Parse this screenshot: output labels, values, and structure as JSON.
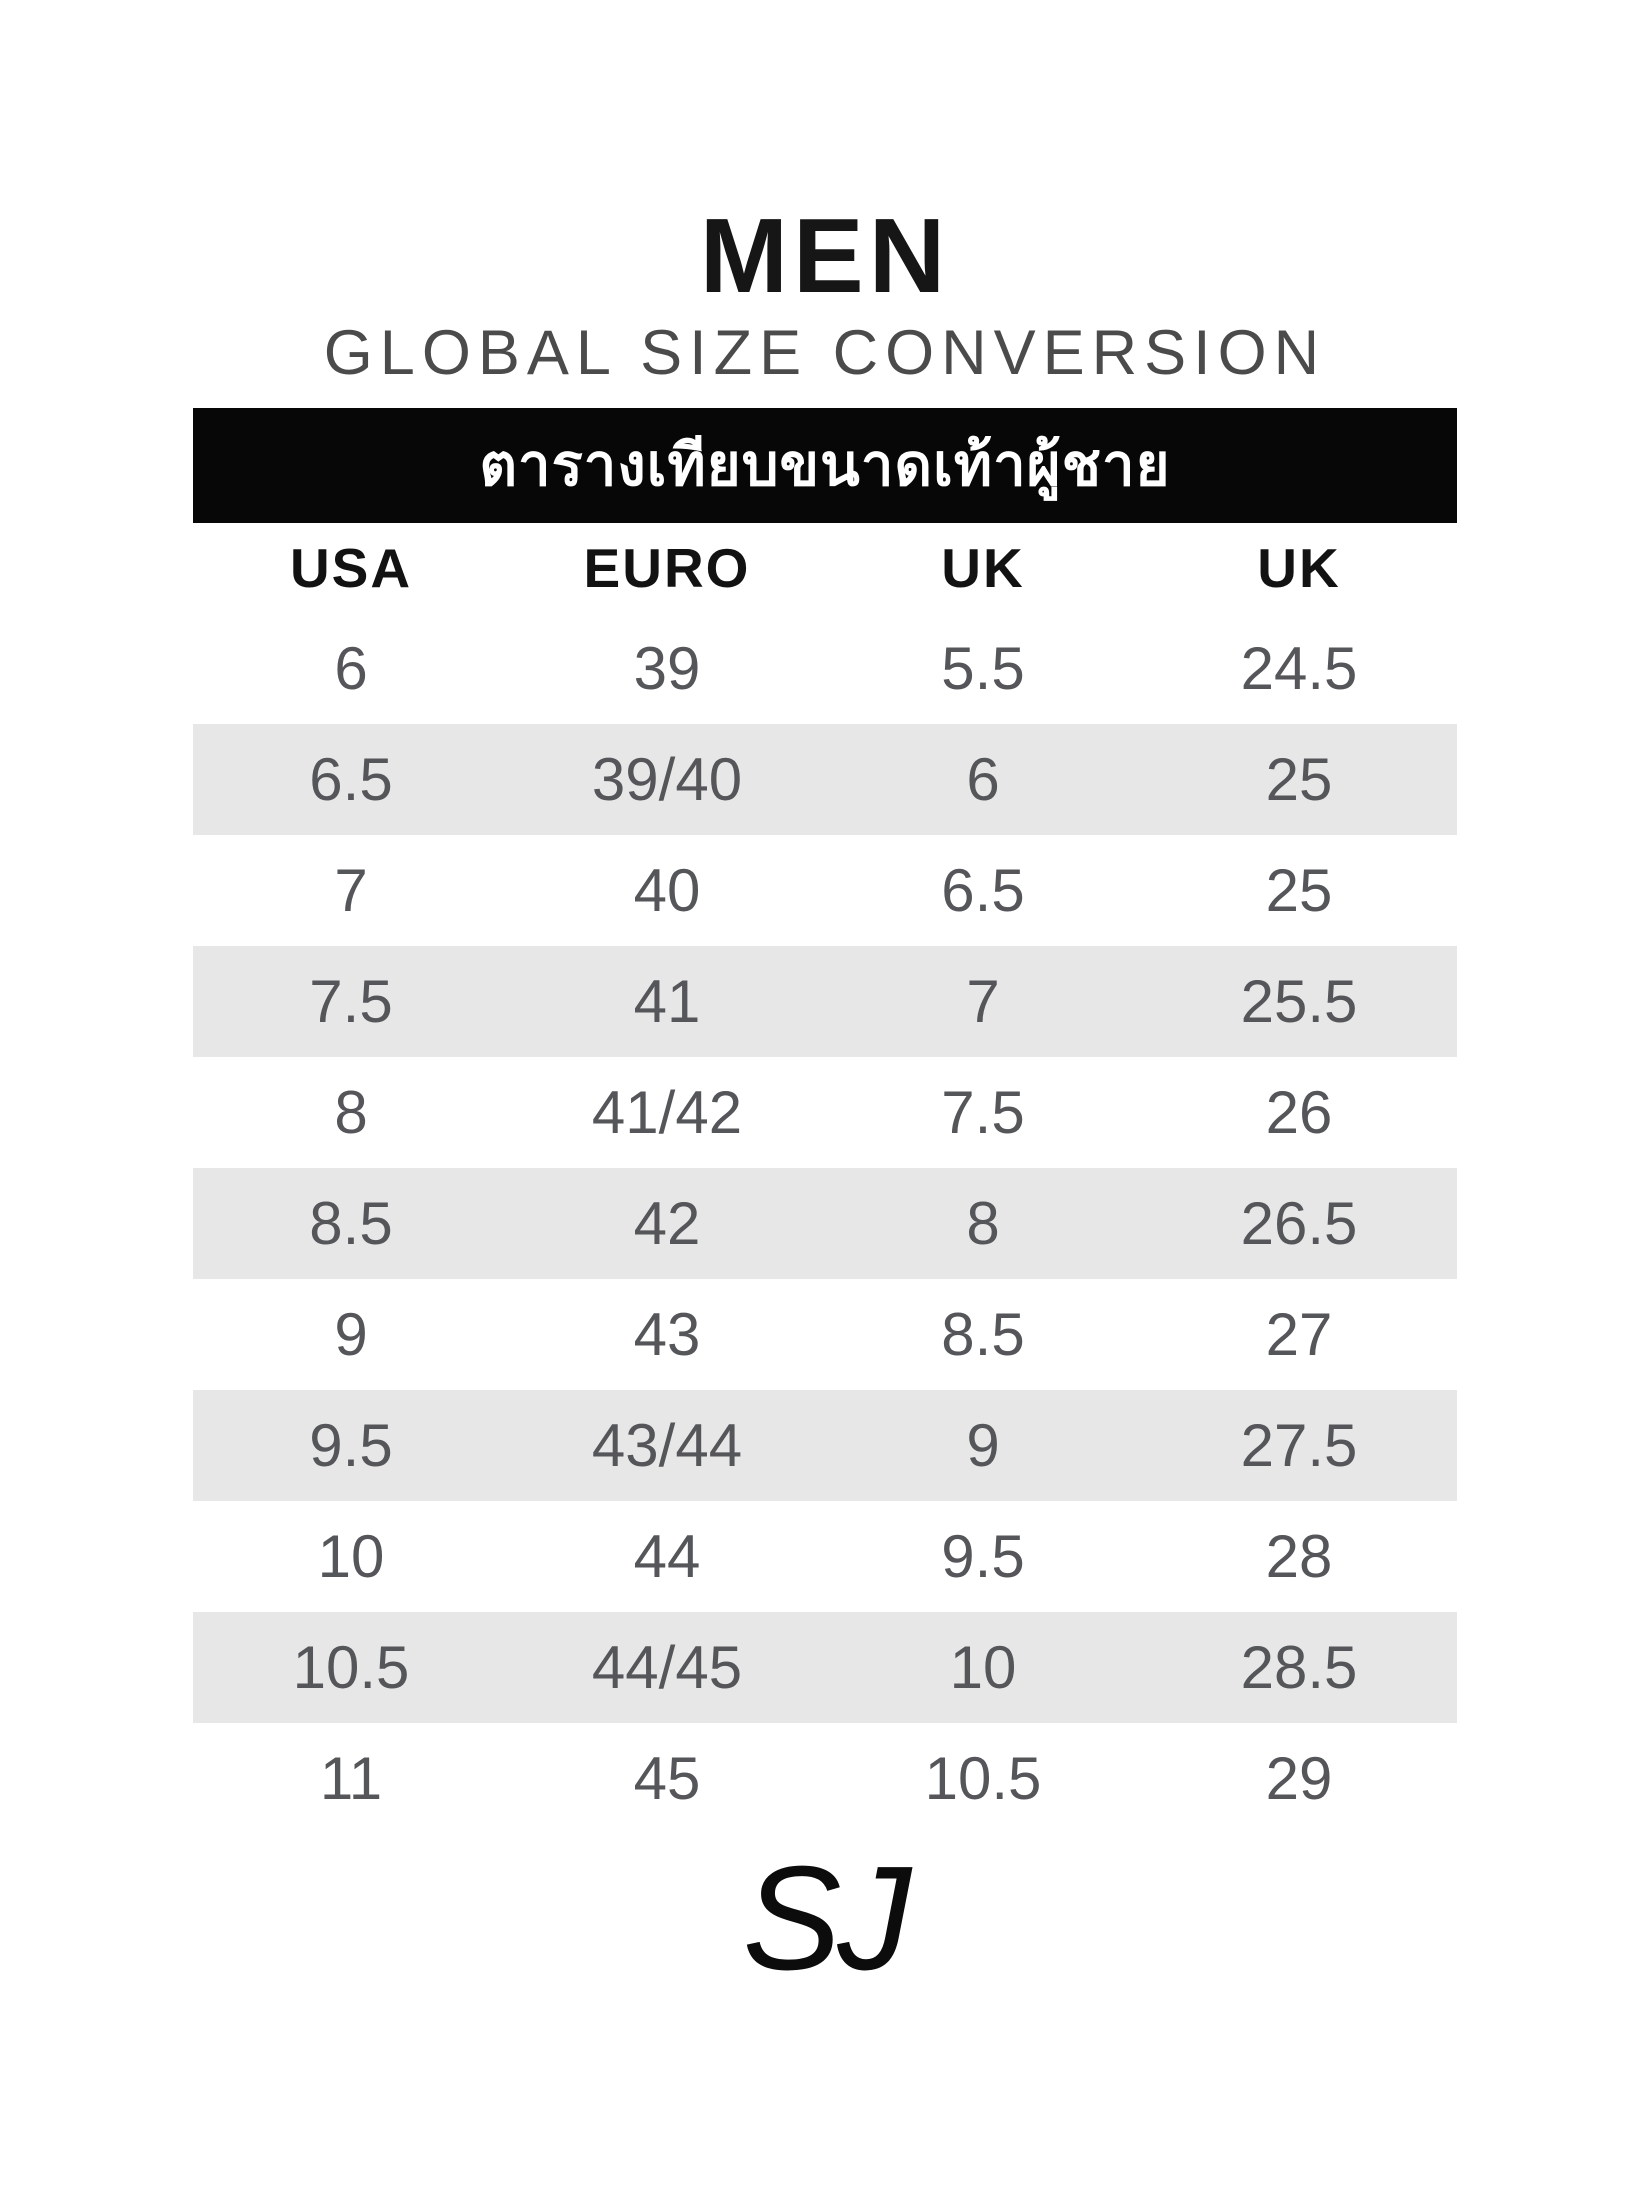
{
  "title": "MEN",
  "subtitle": "GLOBAL SIZE CONVERSION",
  "banner": {
    "text_thai": "ตารางเทียบขนาดเท้าผู้ชาย",
    "bg_color": "#070707",
    "text_color": "#ffffff"
  },
  "table": {
    "headers": [
      "USA",
      "EURO",
      "UK",
      "UK"
    ],
    "rows": [
      [
        "6",
        "39",
        "5.5",
        "24.5"
      ],
      [
        "6.5",
        "39/40",
        "6",
        "25"
      ],
      [
        "7",
        "40",
        "6.5",
        "25"
      ],
      [
        "7.5",
        "41",
        "7",
        "25.5"
      ],
      [
        "8",
        "41/42",
        "7.5",
        "26"
      ],
      [
        "8.5",
        "42",
        "8",
        "26.5"
      ],
      [
        "9",
        "43",
        "8.5",
        "27"
      ],
      [
        "9.5",
        "43/44",
        "9",
        "27.5"
      ],
      [
        "10",
        "44",
        "9.5",
        "28"
      ],
      [
        "10.5",
        "44/45",
        "10",
        "28.5"
      ],
      [
        "11",
        "45",
        "10.5",
        "29"
      ]
    ],
    "stripe_color": "#e7e7e7",
    "value_color": "#55565a",
    "header_color": "#121212"
  },
  "logo": "SJ"
}
